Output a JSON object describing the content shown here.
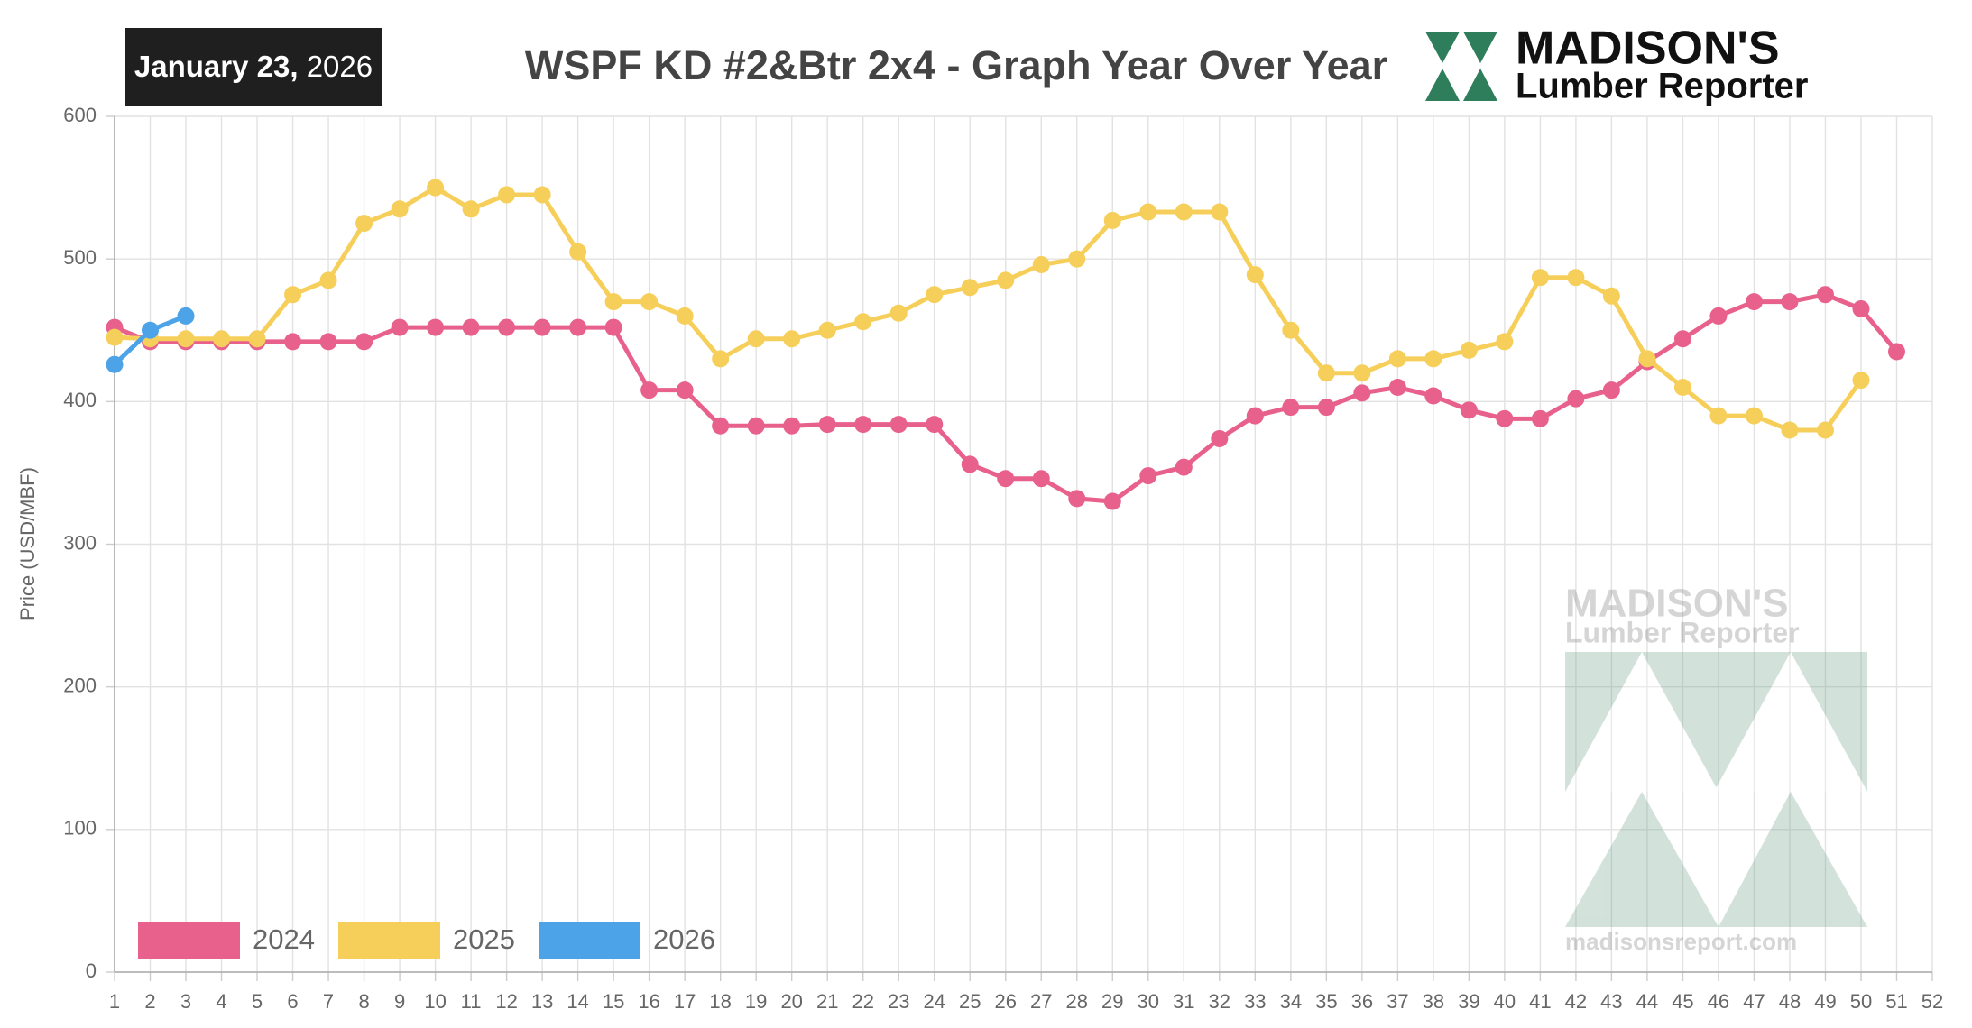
{
  "date": {
    "month_day": "January 23,",
    "year": "2026"
  },
  "logo": {
    "name": "MADISON'S",
    "subtitle": "Lumber Reporter"
  },
  "watermark": {
    "name": "MADISON'S",
    "subtitle": "Lumber Reporter",
    "url": "madisonsreport.com"
  },
  "chart_data": {
    "type": "line",
    "title": "WSPF KD #2&Btr 2x4 - Graph Year Over Year",
    "y_label": "Price (USD/MBF)",
    "x": [
      1,
      2,
      3,
      4,
      5,
      6,
      7,
      8,
      9,
      10,
      11,
      12,
      13,
      14,
      15,
      16,
      17,
      18,
      19,
      20,
      21,
      22,
      23,
      24,
      25,
      26,
      27,
      28,
      29,
      30,
      31,
      32,
      33,
      34,
      35,
      36,
      37,
      38,
      39,
      40,
      41,
      42,
      43,
      44,
      45,
      46,
      47,
      48,
      49,
      50,
      51,
      52
    ],
    "xlim": [
      1,
      52
    ],
    "xticks": [
      1,
      2,
      3,
      4,
      5,
      6,
      7,
      8,
      9,
      10,
      11,
      12,
      13,
      14,
      15,
      16,
      17,
      18,
      19,
      20,
      21,
      22,
      23,
      24,
      25,
      26,
      27,
      28,
      29,
      30,
      31,
      32,
      33,
      34,
      35,
      36,
      37,
      38,
      39,
      40,
      41,
      42,
      43,
      44,
      45,
      46,
      47,
      48,
      49,
      50,
      51,
      52
    ],
    "ylim": [
      0,
      600
    ],
    "yticks": [
      0,
      100,
      200,
      300,
      400,
      500,
      600
    ],
    "grid": true,
    "legend": "bottom-left",
    "series": [
      {
        "name": "2024",
        "color": "#e8618c",
        "values": [
          452,
          442,
          442,
          442,
          442,
          442,
          442,
          442,
          452,
          452,
          452,
          452,
          452,
          452,
          452,
          408,
          408,
          383,
          383,
          383,
          384,
          384,
          384,
          384,
          356,
          346,
          346,
          332,
          330,
          348,
          354,
          374,
          390,
          396,
          396,
          406,
          410,
          404,
          394,
          388,
          388,
          402,
          408,
          428,
          444,
          460,
          470,
          470,
          475,
          465,
          435,
          null
        ]
      },
      {
        "name": "2025",
        "color": "#f6cf5b",
        "values": [
          445,
          444,
          444,
          444,
          444,
          475,
          485,
          525,
          535,
          550,
          535,
          545,
          545,
          505,
          470,
          470,
          460,
          430,
          444,
          444,
          450,
          456,
          462,
          475,
          480,
          485,
          496,
          500,
          527,
          533,
          533,
          533,
          489,
          450,
          420,
          420,
          430,
          430,
          436,
          442,
          487,
          487,
          474,
          430,
          410,
          390,
          390,
          380,
          380,
          415,
          null,
          null
        ]
      },
      {
        "name": "2026",
        "color": "#4da3e8",
        "values": [
          426,
          450,
          460,
          null,
          null,
          null,
          null,
          null,
          null,
          null,
          null,
          null,
          null,
          null,
          null,
          null,
          null,
          null,
          null,
          null,
          null,
          null,
          null,
          null,
          null,
          null,
          null,
          null,
          null,
          null,
          null,
          null,
          null,
          null,
          null,
          null,
          null,
          null,
          null,
          null,
          null,
          null,
          null,
          null,
          null,
          null,
          null,
          null,
          null,
          null,
          null,
          null
        ]
      }
    ]
  }
}
